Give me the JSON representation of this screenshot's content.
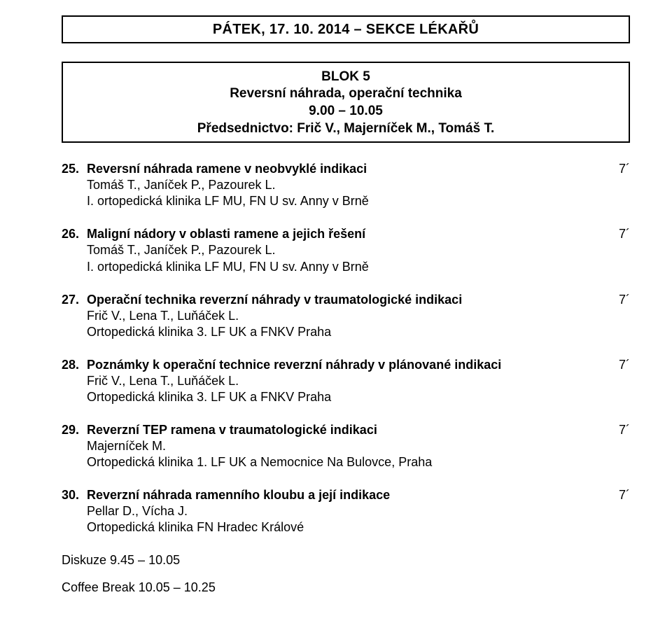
{
  "header": "PÁTEK, 17. 10. 2014 – SEKCE LÉKAŘŮ",
  "block": {
    "line1": "BLOK 5",
    "line2": "Reversní náhrada, operační technika",
    "line3": "9.00 – 10.05",
    "line4": "Předsednictvo: Frič V., Majerníček M., Tomáš T."
  },
  "entries": [
    {
      "num": "25.",
      "title": "Reversní náhrada ramene v neobvyklé indikaci",
      "duration": "7´",
      "authors": "Tomáš T., Janíček P., Pazourek L.",
      "affil": "I. ortopedická klinika LF MU, FN U sv. Anny v Brně"
    },
    {
      "num": "26.",
      "title": "Maligní nádory v oblasti ramene a jejich řešení",
      "duration": "7´",
      "authors": "Tomáš T., Janíček P., Pazourek L.",
      "affil": "I. ortopedická klinika LF MU, FN U sv. Anny v Brně"
    },
    {
      "num": "27.",
      "title": "Operační technika reverzní náhrady v traumatologické indikaci",
      "duration": "7´",
      "authors": "Frič V., Lena T., Luňáček L.",
      "affil": "Ortopedická klinika 3. LF UK a FNKV Praha"
    },
    {
      "num": "28.",
      "title": "Poznámky k operační technice reverzní náhrady v plánované indikaci",
      "duration": "7´",
      "authors": "Frič V., Lena T., Luňáček L.",
      "affil": "Ortopedická klinika 3. LF UK a FNKV Praha"
    },
    {
      "num": "29.",
      "title": "Reverzní TEP ramena v traumatologické indikaci",
      "duration": "7´",
      "authors": "Majerníček M.",
      "affil": "Ortopedická klinika 1. LF UK a Nemocnice Na Bulovce, Praha"
    },
    {
      "num": "30.",
      "title": "Reverzní náhrada ramenního kloubu a její indikace",
      "duration": "7´",
      "authors": "Pellar D., Vícha J.",
      "affil": "Ortopedická klinika FN Hradec Králové"
    }
  ],
  "footer": {
    "discussion": "Diskuze 9.45 – 10.05",
    "break": "Coffee Break 10.05 – 10.25"
  }
}
